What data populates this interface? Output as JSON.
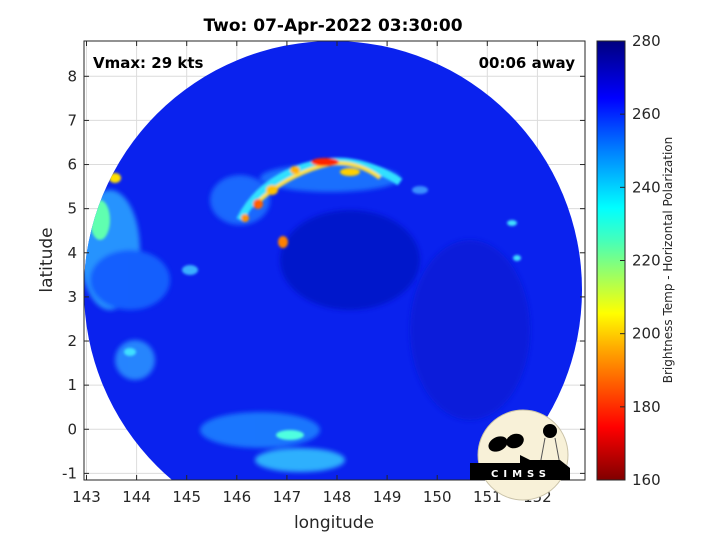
{
  "title": "Two: 07-Apr-2022 03:30:00",
  "annotations": {
    "vmax": "Vmax: 29 kts",
    "time_away": "00:06 away"
  },
  "axes": {
    "xlabel": "longitude",
    "ylabel": "latitude",
    "xlim": [
      142.95,
      152.95
    ],
    "ylim": [
      -1.15,
      8.8
    ],
    "xticks": [
      "143",
      "144",
      "145",
      "146",
      "147",
      "148",
      "149",
      "150",
      "151",
      "152"
    ],
    "yticks": [
      "-1",
      "0",
      "1",
      "2",
      "3",
      "4",
      "5",
      "6",
      "7",
      "8"
    ],
    "grid": true
  },
  "colorbar": {
    "label": "Brightness Temp - Horizontal Polarization",
    "range": [
      160,
      280
    ],
    "ticks": [
      "160",
      "180",
      "200",
      "220",
      "240",
      "260",
      "280"
    ],
    "colormap": "jet"
  },
  "logo": {
    "text": "CIMSS",
    "background": "#f8f1d8"
  },
  "colors": {
    "background_field": "#0a1fe6",
    "axes": "#262626"
  }
}
